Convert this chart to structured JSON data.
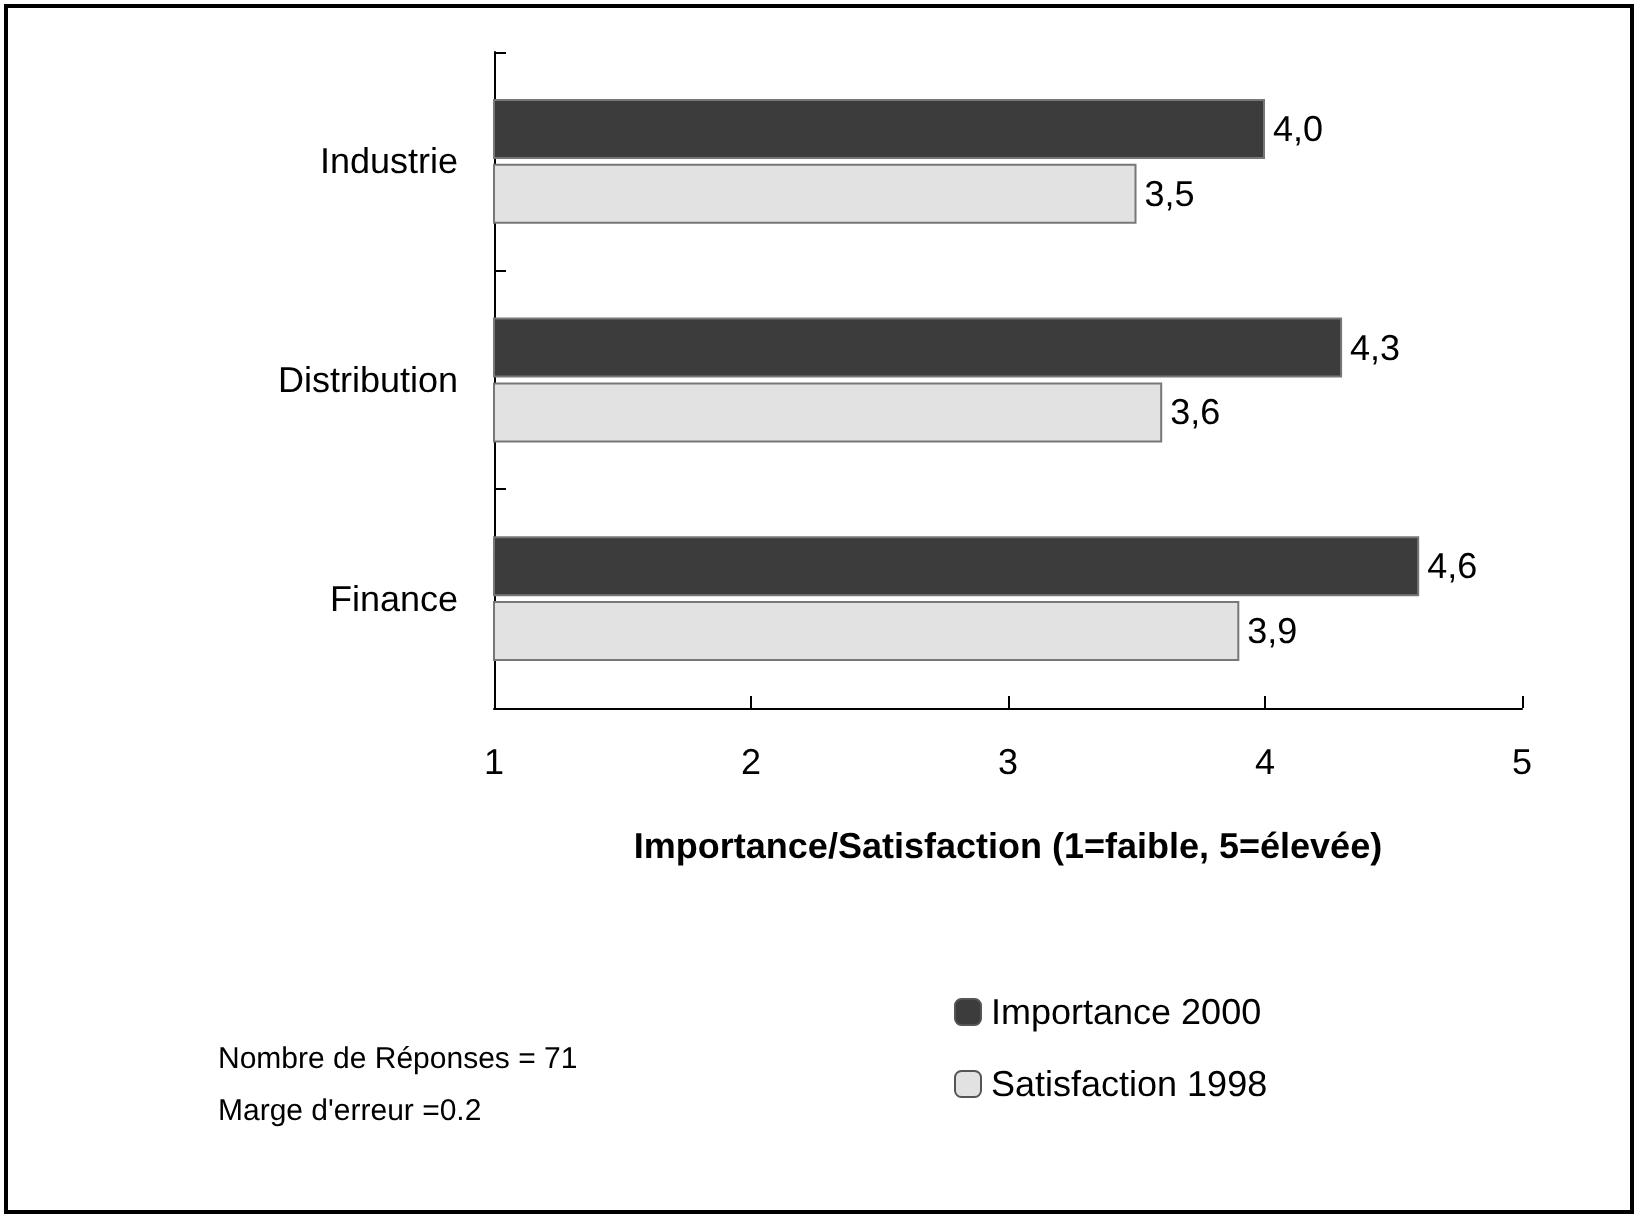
{
  "chart_data": {
    "type": "bar",
    "orientation": "horizontal",
    "categories": [
      "Industrie",
      "Distribution",
      "Finance"
    ],
    "series": [
      {
        "name": "Importance 2000",
        "color": "#3c3c3c",
        "values": [
          4.0,
          4.3,
          4.6
        ],
        "value_labels": [
          "4,0",
          "4,3",
          "4,6"
        ]
      },
      {
        "name": "Satisfaction 1998",
        "color": "#e2e2e2",
        "values": [
          3.5,
          3.6,
          3.9
        ],
        "value_labels": [
          "3,5",
          "3,6",
          "3,9"
        ]
      }
    ],
    "xlim": [
      1,
      5
    ],
    "xticks": [
      1,
      2,
      3,
      4,
      5
    ],
    "xlabel": "Importance/Satisfaction (1=faible, 5=élevée)",
    "legend": "bottom right",
    "grid": false,
    "annotations": [
      "Nombre de Réponses = 71",
      "Marge d'erreur =0.2"
    ]
  }
}
